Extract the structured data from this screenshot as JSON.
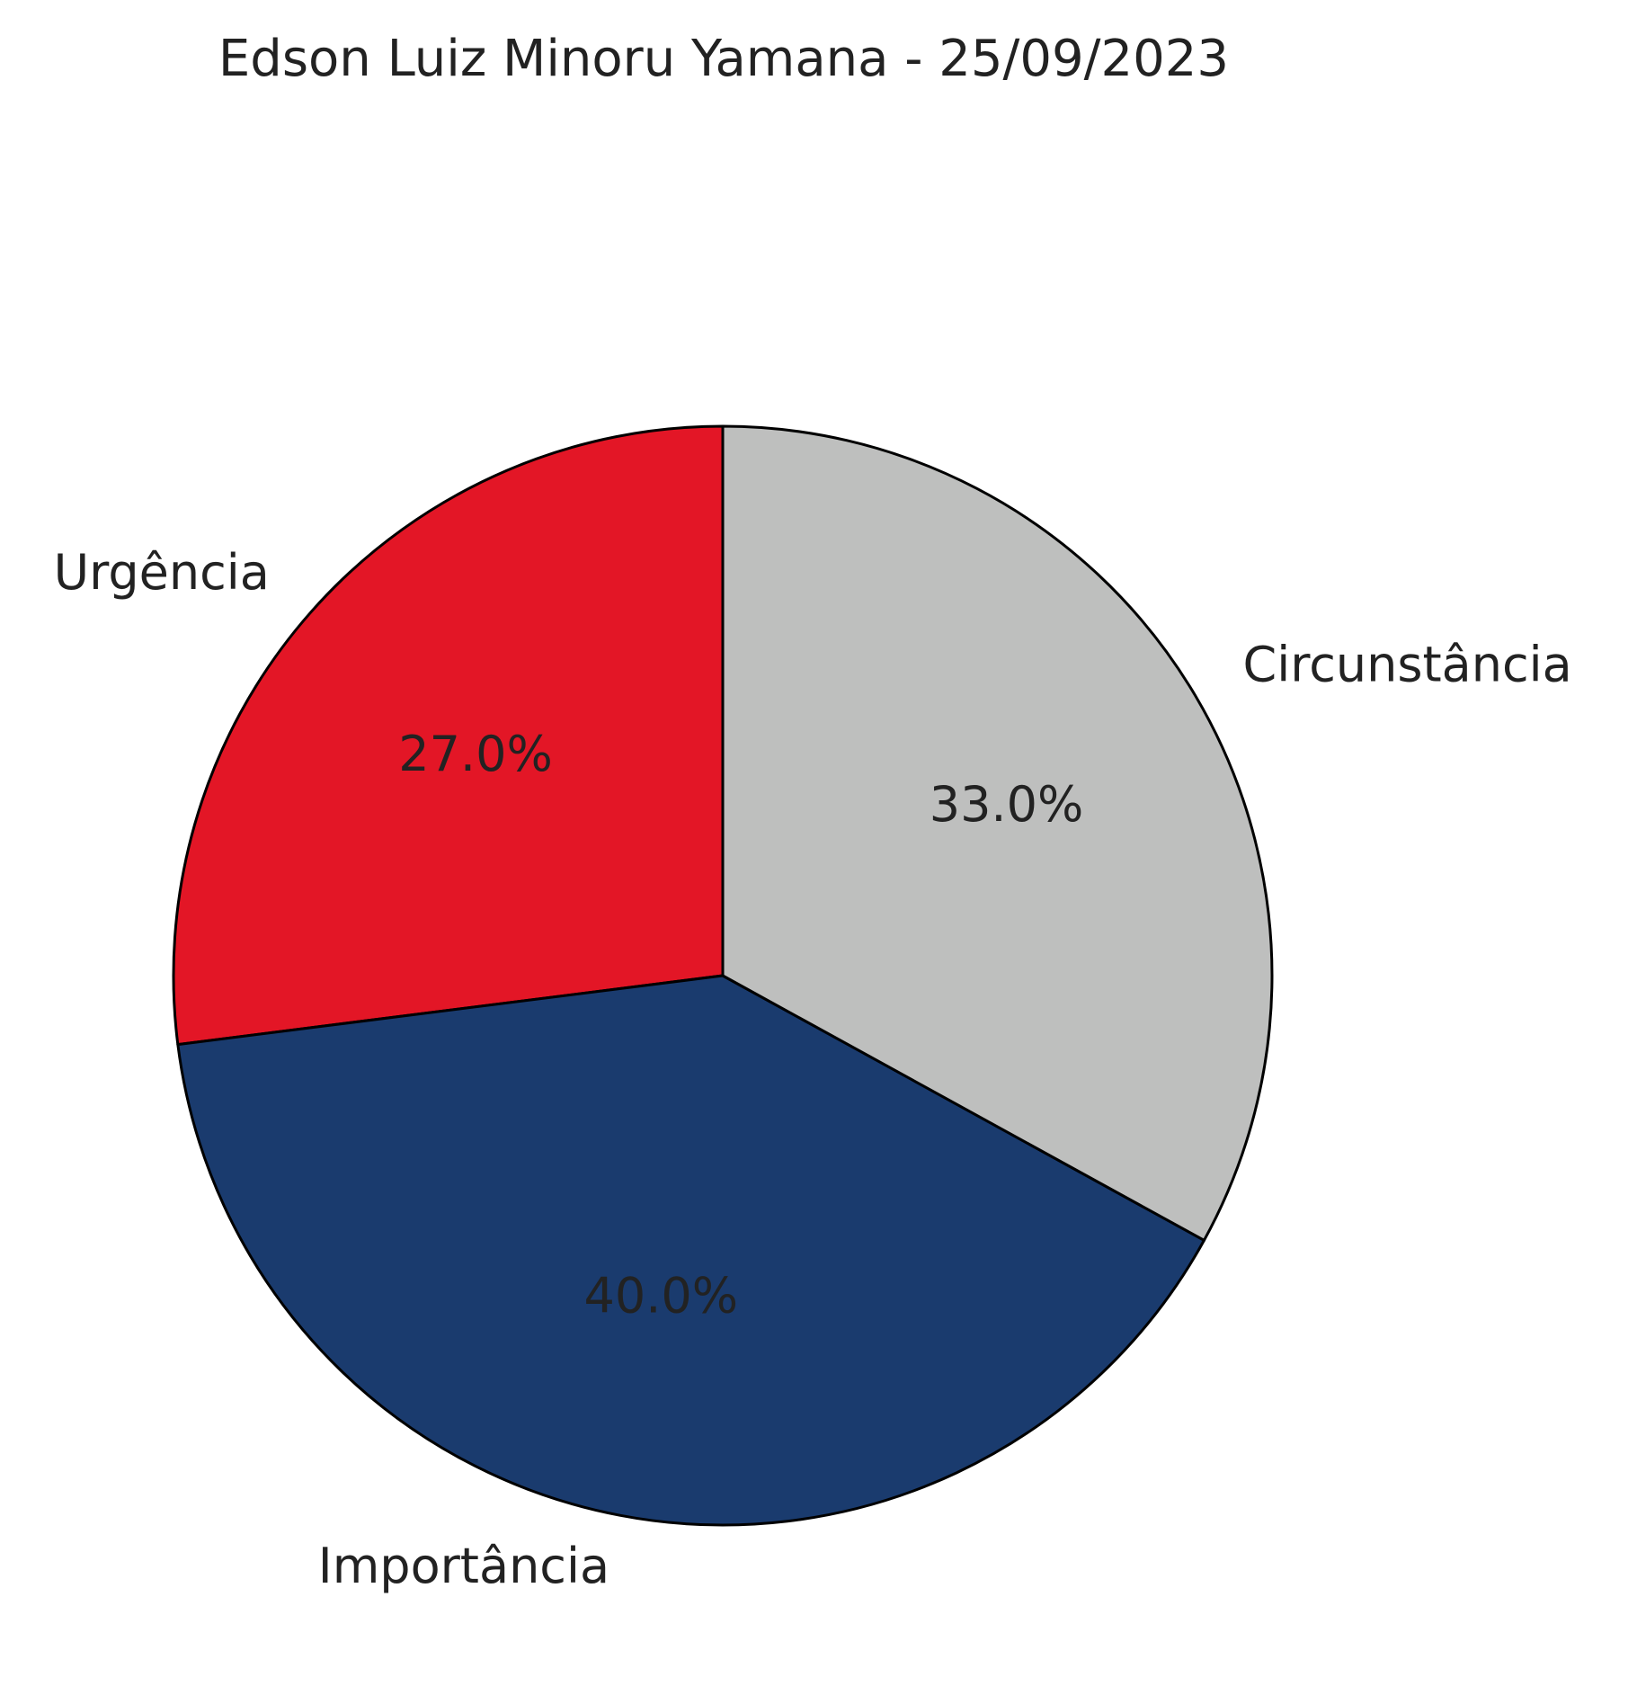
{
  "chart_data": {
    "type": "pie",
    "title": "Edson Luiz Minoru Yamana - 25/09/2023",
    "start_angle_deg": 90,
    "direction": "counterclockwise",
    "slices": [
      {
        "label": "Urgência",
        "value": 27.0,
        "display": "27.0%",
        "color": "#e31626"
      },
      {
        "label": "Importância",
        "value": 40.0,
        "display": "40.0%",
        "color": "#1a3b6e"
      },
      {
        "label": "Circunstância",
        "value": 33.0,
        "display": "33.0%",
        "color": "#bebfbe"
      }
    ],
    "legend": "none"
  }
}
